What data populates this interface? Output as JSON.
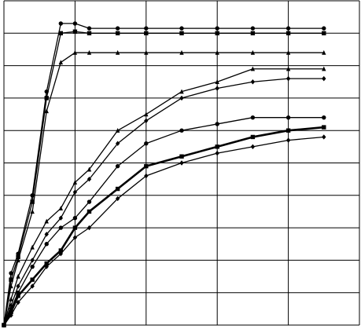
{
  "chart_data": {
    "type": "line",
    "x": [
      0,
      0.1,
      0.2,
      0.4,
      0.6,
      0.8,
      1,
      1.2,
      1.6,
      2,
      2.5,
      3,
      3.5,
      4,
      4.5
    ],
    "xlim": [
      0,
      5
    ],
    "ylim": [
      0,
      10
    ],
    "xticks": [
      0,
      1,
      2,
      3,
      4,
      5
    ],
    "yticks": [
      0,
      1,
      2,
      3,
      4,
      5,
      6,
      7,
      8,
      9,
      10
    ],
    "grid": true,
    "series": [
      {
        "color": "#000000",
        "marker": "circle",
        "width": 1.3,
        "values": [
          0,
          1.6,
          2.2,
          4.0,
          7.2,
          9.3,
          9.3,
          9.15,
          9.15,
          9.15,
          9.15,
          9.15,
          9.15,
          9.15,
          9.15
        ]
      },
      {
        "color": "#000000",
        "marker": "square",
        "width": 1.3,
        "values": [
          0,
          1.4,
          2.1,
          3.8,
          7.0,
          9.0,
          9.05,
          9.0,
          9.0,
          9.0,
          9.0,
          9.0,
          9.0,
          9.0,
          9.0
        ]
      },
      {
        "color": "#000000",
        "marker": "triangle",
        "width": 1.3,
        "values": [
          0,
          1.2,
          2.0,
          3.5,
          6.6,
          8.1,
          8.4,
          8.4,
          8.4,
          8.4,
          8.4,
          8.4,
          8.4,
          8.4,
          8.4
        ]
      },
      {
        "color": "#000000",
        "marker": "triangle",
        "width": 1.3,
        "values": [
          0,
          0.8,
          1.5,
          2.4,
          3.2,
          3.6,
          4.4,
          4.8,
          6.0,
          6.5,
          7.2,
          7.5,
          7.9,
          7.9,
          7.9
        ]
      },
      {
        "color": "#000000",
        "marker": "diamond",
        "width": 1.3,
        "values": [
          0,
          0.6,
          1.2,
          2.0,
          2.8,
          3.3,
          4.1,
          4.5,
          5.6,
          6.3,
          7.0,
          7.3,
          7.5,
          7.6,
          7.6
        ]
      },
      {
        "color": "#000000",
        "marker": "circle",
        "width": 1.3,
        "values": [
          0,
          0.5,
          1.0,
          1.8,
          2.5,
          3.0,
          3.3,
          3.8,
          4.9,
          5.6,
          6.0,
          6.2,
          6.4,
          6.4,
          6.4
        ]
      },
      {
        "color": "#000000",
        "marker": "square",
        "width": 2.6,
        "values": [
          0,
          0.4,
          0.9,
          1.4,
          1.9,
          2.3,
          3.0,
          3.5,
          4.2,
          4.9,
          5.2,
          5.5,
          5.8,
          6.0,
          6.1
        ]
      },
      {
        "color": "#000000",
        "marker": "diamond",
        "width": 1.3,
        "values": [
          0,
          0.3,
          0.7,
          1.2,
          1.8,
          2.2,
          2.7,
          3.0,
          3.9,
          4.6,
          5.0,
          5.3,
          5.5,
          5.7,
          5.8
        ]
      }
    ]
  }
}
